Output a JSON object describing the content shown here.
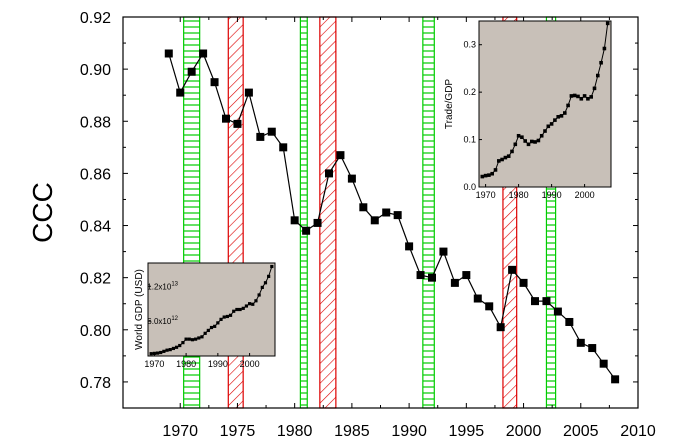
{
  "chart_data": [
    {
      "id": "main",
      "type": "line",
      "title": "",
      "xlabel": "",
      "ylabel": "CCC",
      "xlim": [
        1965,
        2010
      ],
      "ylim": [
        0.77,
        0.92
      ],
      "xticks": [
        1970,
        1975,
        1980,
        1985,
        1990,
        1995,
        2000,
        2005,
        2010
      ],
      "yticks": [
        "0.78",
        "0.80",
        "0.82",
        "0.84",
        "0.86",
        "0.88",
        "0.90",
        "0.92"
      ],
      "marker": "square",
      "line_color": "#000000",
      "series": [
        {
          "x": [
            1969,
            1970,
            1971,
            1972,
            1973,
            1974,
            1975,
            1976,
            1977,
            1978,
            1979,
            1980,
            1981,
            1982,
            1983,
            1984,
            1985,
            1986,
            1987,
            1988,
            1989,
            1990,
            1991,
            1992,
            1993,
            1994,
            1995,
            1996,
            1997,
            1998,
            1999,
            2000,
            2001,
            2002,
            2003,
            2004,
            2005,
            2006,
            2007,
            2008
          ],
          "y": [
            0.906,
            0.891,
            0.899,
            0.906,
            0.895,
            0.881,
            0.879,
            0.891,
            0.874,
            0.876,
            0.87,
            0.842,
            0.838,
            0.841,
            0.86,
            0.867,
            0.858,
            0.847,
            0.842,
            0.845,
            0.844,
            0.832,
            0.821,
            0.82,
            0.83,
            0.818,
            0.821,
            0.812,
            0.809,
            0.801,
            0.823,
            0.818,
            0.811,
            0.811,
            0.807,
            0.803,
            0.795,
            0.793,
            0.787,
            0.781
          ]
        }
      ],
      "bands": [
        {
          "start": 1970.3,
          "end": 1971.7,
          "color": "#00cc00",
          "pattern": "horizontal-lines"
        },
        {
          "start": 1974.2,
          "end": 1975.5,
          "color": "#dd0000",
          "pattern": "diagonal-lines"
        },
        {
          "start": 1980.5,
          "end": 1981.1,
          "color": "#00cc00",
          "pattern": "horizontal-lines"
        },
        {
          "start": 1982.2,
          "end": 1983.6,
          "color": "#dd0000",
          "pattern": "diagonal-lines"
        },
        {
          "start": 1991.2,
          "end": 1992.2,
          "color": "#00cc00",
          "pattern": "horizontal-lines"
        },
        {
          "start": 1998.2,
          "end": 1999.4,
          "color": "#dd0000",
          "pattern": "diagonal-lines"
        },
        {
          "start": 2002.0,
          "end": 2002.8,
          "color": "#00cc00",
          "pattern": "horizontal-lines"
        }
      ]
    },
    {
      "id": "inset_trade",
      "type": "line",
      "title": "",
      "xlabel": "",
      "ylabel": "Trade/GDP",
      "xlim": [
        1968,
        2008
      ],
      "ylim": [
        0,
        0.35
      ],
      "xticks": [
        1970,
        1980,
        1990,
        2000
      ],
      "yticks": [
        "0.0",
        "0.1",
        "0.2",
        "0.3"
      ],
      "background": "#c8c0b8",
      "marker": "square",
      "series": [
        {
          "x": [
            1969,
            1970,
            1971,
            1972,
            1973,
            1974,
            1975,
            1976,
            1977,
            1978,
            1979,
            1980,
            1981,
            1982,
            1983,
            1984,
            1985,
            1986,
            1987,
            1988,
            1989,
            1990,
            1991,
            1992,
            1993,
            1994,
            1995,
            1996,
            1997,
            1998,
            1999,
            2000,
            2001,
            2002,
            2003,
            2004,
            2005,
            2006,
            2007
          ],
          "y": [
            0.022,
            0.024,
            0.025,
            0.028,
            0.036,
            0.055,
            0.058,
            0.062,
            0.065,
            0.075,
            0.09,
            0.108,
            0.105,
            0.097,
            0.09,
            0.096,
            0.095,
            0.098,
            0.108,
            0.118,
            0.128,
            0.133,
            0.141,
            0.148,
            0.15,
            0.156,
            0.172,
            0.192,
            0.193,
            0.191,
            0.186,
            0.192,
            0.186,
            0.19,
            0.208,
            0.235,
            0.262,
            0.292,
            0.345
          ]
        }
      ]
    },
    {
      "id": "inset_gdp",
      "type": "line",
      "title": "",
      "xlabel": "",
      "ylabel": "World GDP (USD)",
      "xlim": [
        1968,
        2008
      ],
      "ylim": [
        0,
        16000000000000.0
      ],
      "xticks": [
        1970,
        1980,
        1990,
        2000
      ],
      "ytick_labels": [
        {
          "value": 6000000000000.0,
          "mantissa": "6.0x10",
          "exp": "12"
        },
        {
          "value": 12000000000000.0,
          "mantissa": "1.2x10",
          "exp": "13"
        }
      ],
      "background": "#c8c0b8",
      "marker": "square",
      "series": [
        {
          "x": [
            1969,
            1970,
            1971,
            1972,
            1973,
            1974,
            1975,
            1976,
            1977,
            1978,
            1979,
            1980,
            1981,
            1982,
            1983,
            1984,
            1985,
            1986,
            1987,
            1988,
            1989,
            1990,
            1991,
            1992,
            1993,
            1994,
            1995,
            1996,
            1997,
            1998,
            1999,
            2000,
            2001,
            2002,
            2003,
            2004,
            2005,
            2006,
            2007
          ],
          "y": [
            400000000000.0,
            450000000000.0,
            500000000000.0,
            600000000000.0,
            800000000000.0,
            1000000000000.0,
            1100000000000.0,
            1300000000000.0,
            1500000000000.0,
            1800000000000.0,
            2300000000000.0,
            2900000000000.0,
            2900000000000.0,
            2800000000000.0,
            2900000000000.0,
            3100000000000.0,
            3300000000000.0,
            3900000000000.0,
            4400000000000.0,
            4900000000000.0,
            5100000000000.0,
            5700000000000.0,
            6300000000000.0,
            6700000000000.0,
            6800000000000.0,
            7000000000000.0,
            7700000000000.0,
            8000000000000.0,
            8000000000000.0,
            8200000000000.0,
            8600000000000.0,
            9000000000000.0,
            8900000000000.0,
            9500000000000.0,
            10500000000000.0,
            11800000000000.0,
            12600000000000.0,
            13700000000000.0,
            15400000000000.0
          ]
        }
      ]
    }
  ]
}
